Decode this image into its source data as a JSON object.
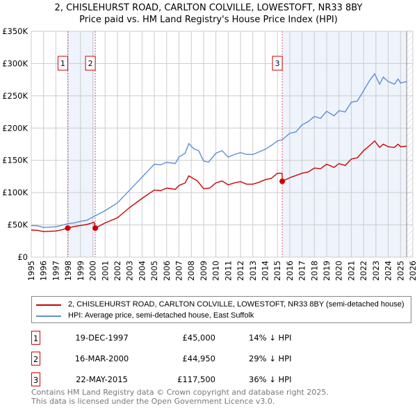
{
  "title": "2, CHISLEHURST ROAD, CARLTON COLVILLE, LOWESTOFT, NR33 8BY",
  "subtitle": "Price paid vs. HM Land Registry's House Price Index (HPI)",
  "chart_data": {
    "type": "line",
    "title": "2, CHISLEHURST ROAD, CARLTON COLVILLE, LOWESTOFT, NR33 8BY",
    "subtitle": "Price paid vs. HM Land Registry's House Price Index (HPI)",
    "xlim": [
      1995,
      2026
    ],
    "ylim": [
      0,
      350000
    ],
    "x_ticks": [
      "1995",
      "1996",
      "1997",
      "1998",
      "1999",
      "2000",
      "2001",
      "2002",
      "2003",
      "2004",
      "2005",
      "2006",
      "2007",
      "2008",
      "2009",
      "2010",
      "2011",
      "2012",
      "2013",
      "2014",
      "2015",
      "2016",
      "2017",
      "2018",
      "2019",
      "2020",
      "2021",
      "2022",
      "2023",
      "2024",
      "2025",
      "2026"
    ],
    "y_ticks": [
      {
        "v": 0,
        "label": "£0"
      },
      {
        "v": 50000,
        "label": "£50K"
      },
      {
        "v": 100000,
        "label": "£100K"
      },
      {
        "v": 150000,
        "label": "£150K"
      },
      {
        "v": 200000,
        "label": "£200K"
      },
      {
        "v": 250000,
        "label": "£250K"
      },
      {
        "v": 300000,
        "label": "£300K"
      },
      {
        "v": 350000,
        "label": "£350K"
      }
    ],
    "grid": true,
    "series": [
      {
        "name": "2, CHISLEHURST ROAD, CARLTON COLVILLE, LOWESTOFT, NR33 8BY (semi-detached house)",
        "color": "#cc0000",
        "points": [
          [
            1995,
            42000
          ],
          [
            1995.5,
            41500
          ],
          [
            1996,
            39500
          ],
          [
            1997,
            40500
          ],
          [
            1997.5,
            42500
          ],
          [
            1997.96,
            45000
          ],
          [
            1998.5,
            47500
          ],
          [
            1999.5,
            50500
          ],
          [
            2000.1,
            54000
          ],
          [
            2000.2,
            44950
          ],
          [
            2001,
            53000
          ],
          [
            2002,
            61000
          ],
          [
            2003,
            77000
          ],
          [
            2004,
            91000
          ],
          [
            2005,
            104000
          ],
          [
            2005.5,
            103000
          ],
          [
            2006,
            107000
          ],
          [
            2006.7,
            105000
          ],
          [
            2007,
            111000
          ],
          [
            2007.5,
            115000
          ],
          [
            2007.8,
            126000
          ],
          [
            2008.5,
            118000
          ],
          [
            2009,
            106000
          ],
          [
            2009.5,
            107000
          ],
          [
            2010,
            115000
          ],
          [
            2010.5,
            118000
          ],
          [
            2011,
            112000
          ],
          [
            2011.5,
            115000
          ],
          [
            2012,
            117000
          ],
          [
            2012.5,
            113000
          ],
          [
            2013,
            113000
          ],
          [
            2013.5,
            116000
          ],
          [
            2014,
            120000
          ],
          [
            2014.5,
            122000
          ],
          [
            2015,
            130000
          ],
          [
            2015.38,
            130000
          ],
          [
            2015.39,
            117500
          ],
          [
            2016,
            123000
          ],
          [
            2017,
            130000
          ],
          [
            2017.5,
            132000
          ],
          [
            2018,
            138000
          ],
          [
            2018.5,
            137000
          ],
          [
            2019,
            144000
          ],
          [
            2019.6,
            139000
          ],
          [
            2020,
            145000
          ],
          [
            2020.5,
            142000
          ],
          [
            2021,
            152000
          ],
          [
            2021.5,
            154000
          ],
          [
            2022,
            165000
          ],
          [
            2022.5,
            173000
          ],
          [
            2022.9,
            180000
          ],
          [
            2023.3,
            170000
          ],
          [
            2023.6,
            175000
          ],
          [
            2024,
            171000
          ],
          [
            2024.5,
            170000
          ],
          [
            2024.8,
            175000
          ],
          [
            2025,
            171000
          ],
          [
            2025.5,
            172000
          ]
        ]
      },
      {
        "name": "HPI: Average price, semi-detached house, East Suffolk",
        "color": "#5b8fd4",
        "points": [
          [
            1995,
            49000
          ],
          [
            1995.5,
            48500
          ],
          [
            1996,
            46000
          ],
          [
            1997,
            47000
          ],
          [
            1997.5,
            49500
          ],
          [
            1998,
            52000
          ],
          [
            1998.5,
            53000
          ],
          [
            1999,
            55500
          ],
          [
            1999.5,
            57000
          ],
          [
            2000,
            62000
          ],
          [
            2001,
            72000
          ],
          [
            2002,
            84000
          ],
          [
            2003,
            104000
          ],
          [
            2004,
            124000
          ],
          [
            2004.5,
            134000
          ],
          [
            2005,
            144000
          ],
          [
            2005.5,
            143000
          ],
          [
            2006,
            147000
          ],
          [
            2006.7,
            145000
          ],
          [
            2007,
            155000
          ],
          [
            2007.5,
            161000
          ],
          [
            2007.8,
            176000
          ],
          [
            2008.2,
            168000
          ],
          [
            2008.6,
            165000
          ],
          [
            2009,
            149000
          ],
          [
            2009.4,
            147000
          ],
          [
            2010,
            161000
          ],
          [
            2010.5,
            165000
          ],
          [
            2011,
            155000
          ],
          [
            2011.5,
            159000
          ],
          [
            2012,
            162000
          ],
          [
            2012.5,
            159000
          ],
          [
            2013,
            159000
          ],
          [
            2013.5,
            163000
          ],
          [
            2014,
            167000
          ],
          [
            2014.5,
            173000
          ],
          [
            2015,
            180000
          ],
          [
            2015.4,
            182000
          ],
          [
            2016,
            192000
          ],
          [
            2016.5,
            194000
          ],
          [
            2017,
            205000
          ],
          [
            2017.5,
            210000
          ],
          [
            2018,
            218000
          ],
          [
            2018.5,
            215000
          ],
          [
            2019,
            226000
          ],
          [
            2019.6,
            219000
          ],
          [
            2020,
            227000
          ],
          [
            2020.5,
            225000
          ],
          [
            2021,
            240000
          ],
          [
            2021.5,
            242000
          ],
          [
            2022,
            258000
          ],
          [
            2022.5,
            274000
          ],
          [
            2022.9,
            284000
          ],
          [
            2023.3,
            268000
          ],
          [
            2023.6,
            279000
          ],
          [
            2024,
            272000
          ],
          [
            2024.5,
            268000
          ],
          [
            2024.8,
            276000
          ],
          [
            2025,
            270000
          ],
          [
            2025.5,
            272000
          ]
        ]
      }
    ],
    "sales": [
      {
        "id": "1",
        "x": 1997.96,
        "y": 45000
      },
      {
        "id": "2",
        "x": 2000.2,
        "y": 44950
      },
      {
        "id": "3",
        "x": 2015.39,
        "y": 117500
      }
    ],
    "shaded_ranges": [
      [
        1997.96,
        2000.2
      ],
      [
        2015.39,
        2026
      ]
    ],
    "hatched_from": 2025.5,
    "legend_placement": "below"
  },
  "legend": [
    {
      "label": "2, CHISLEHURST ROAD, CARLTON COLVILLE, LOWESTOFT, NR33 8BY (semi-detached house)",
      "color": "#cc0000"
    },
    {
      "label": "HPI: Average price, semi-detached house, East Suffolk",
      "color": "#5b8fd4"
    }
  ],
  "transactions": [
    {
      "num": "1",
      "date": "19-DEC-1997",
      "price": "£45,000",
      "delta": "14% ↓ HPI"
    },
    {
      "num": "2",
      "date": "16-MAR-2000",
      "price": "£44,950",
      "delta": "29% ↓ HPI"
    },
    {
      "num": "3",
      "date": "22-MAY-2015",
      "price": "£117,500",
      "delta": "36% ↓ HPI"
    }
  ],
  "footer": [
    "Contains HM Land Registry data © Crown copyright and database right 2025.",
    "This data is licensed under the Open Government Licence v3.0."
  ]
}
